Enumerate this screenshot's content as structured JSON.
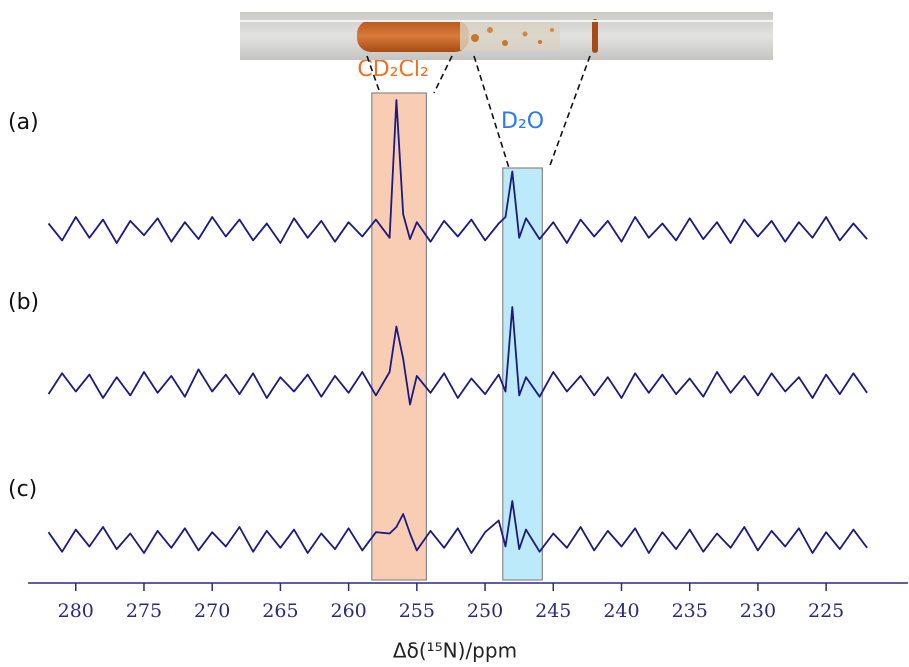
{
  "chart_data": {
    "type": "line",
    "x_label": "Δδ(¹⁵N)/ppm",
    "xlim": [
      283.5,
      219
    ],
    "xticks": [
      280,
      275,
      270,
      265,
      260,
      255,
      250,
      245,
      240,
      235,
      230,
      225
    ],
    "x": [
      282,
      281,
      280,
      279,
      278,
      277,
      276,
      275,
      274,
      273,
      272,
      271,
      270,
      269,
      268,
      267,
      266,
      265,
      264,
      263,
      262,
      261,
      260,
      259,
      258,
      257,
      256.5,
      256,
      255.5,
      255,
      254,
      253,
      252,
      251,
      250,
      249,
      248.5,
      248,
      247.5,
      247,
      246,
      245,
      244,
      243,
      242,
      241,
      240,
      239,
      238,
      237,
      236,
      235,
      234,
      233,
      232,
      231,
      230,
      229,
      228,
      227,
      226,
      225,
      224,
      223,
      222
    ],
    "regions": [
      {
        "label": "CD₂Cl₂",
        "color": "#f9cdb3",
        "label_color": "#f07020",
        "range": [
          258.3,
          254.3
        ]
      },
      {
        "label": "D₂O",
        "color": "#bdeafa",
        "label_color": "#2a7af0",
        "range": [
          248.7,
          245.8
        ]
      }
    ],
    "series": [
      {
        "name": "(a)",
        "color": "#1a1a80",
        "values": [
          0.05,
          -0.08,
          0.1,
          -0.06,
          0.08,
          -0.1,
          0.07,
          -0.04,
          0.09,
          -0.09,
          0.06,
          -0.07,
          0.1,
          -0.05,
          0.08,
          -0.08,
          0.05,
          -0.1,
          0.09,
          -0.06,
          0.07,
          -0.09,
          0.06,
          -0.05,
          0.08,
          -0.06,
          1.0,
          0.12,
          -0.07,
          0.06,
          -0.09,
          0.07,
          -0.05,
          0.08,
          -0.08,
          0.05,
          0.1,
          0.45,
          -0.06,
          0.09,
          -0.07,
          0.06,
          -0.1,
          0.08,
          -0.05,
          0.07,
          -0.09,
          0.1,
          -0.06,
          0.05,
          -0.08,
          0.09,
          -0.07,
          0.06,
          -0.1,
          0.08,
          -0.05,
          0.07,
          -0.09,
          0.06,
          -0.06,
          0.1,
          -0.08,
          0.05,
          -0.07
        ]
      },
      {
        "name": "(b)",
        "color": "#1a1a80",
        "values": [
          -0.07,
          0.09,
          -0.05,
          0.08,
          -0.1,
          0.06,
          -0.08,
          0.1,
          -0.06,
          0.07,
          -0.09,
          0.12,
          -0.05,
          0.08,
          -0.07,
          0.09,
          -0.1,
          0.06,
          -0.05,
          0.08,
          -0.09,
          0.07,
          -0.06,
          0.1,
          -0.08,
          0.1,
          0.45,
          0.2,
          -0.15,
          0.07,
          -0.06,
          0.09,
          -0.1,
          0.05,
          -0.07,
          0.08,
          -0.05,
          0.6,
          -0.08,
          0.06,
          -0.09,
          0.1,
          -0.05,
          0.07,
          -0.08,
          0.06,
          -0.1,
          0.09,
          -0.06,
          0.08,
          -0.07,
          0.05,
          -0.09,
          0.1,
          -0.06,
          0.07,
          -0.08,
          0.09,
          -0.05,
          0.06,
          -0.1,
          0.08,
          -0.07,
          0.09,
          -0.06
        ]
      },
      {
        "name": "(c)",
        "color": "#1a1a80",
        "values": [
          0.06,
          -0.09,
          0.08,
          -0.05,
          0.1,
          -0.07,
          0.05,
          -0.1,
          0.07,
          -0.06,
          0.09,
          -0.08,
          0.06,
          -0.05,
          0.1,
          -0.09,
          0.07,
          -0.06,
          0.08,
          -0.1,
          0.05,
          -0.07,
          0.09,
          -0.08,
          0.06,
          0.05,
          0.1,
          0.2,
          0.05,
          -0.08,
          0.07,
          -0.06,
          0.09,
          -0.1,
          0.06,
          0.15,
          -0.05,
          0.3,
          -0.07,
          0.08,
          -0.09,
          0.05,
          -0.06,
          0.1,
          -0.08,
          0.07,
          -0.05,
          0.09,
          -0.1,
          0.06,
          -0.07,
          0.08,
          -0.09,
          0.05,
          -0.06,
          0.1,
          -0.08,
          0.07,
          -0.05,
          0.09,
          -0.1,
          0.06,
          -0.07,
          0.08,
          -0.06
        ]
      }
    ]
  }
}
